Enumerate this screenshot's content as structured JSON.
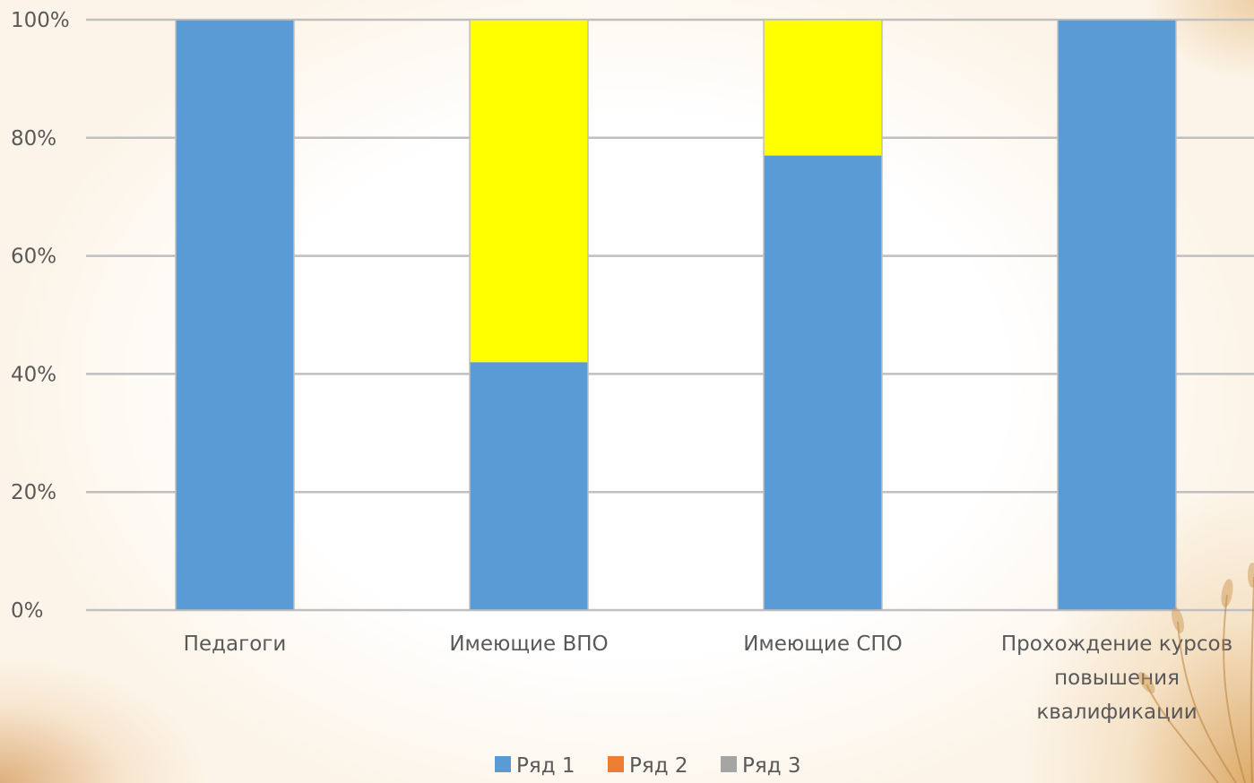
{
  "chart_data": {
    "type": "bar",
    "stacked": "percent",
    "categories": [
      [
        "Педагоги"
      ],
      [
        "Имеющие ВПО"
      ],
      [
        "Имеющие СПО"
      ],
      [
        "Прохождение курсов",
        "повышения",
        "квалификации"
      ]
    ],
    "series": [
      {
        "name": "Ряд 1",
        "color": "#5B9BD5",
        "values": [
          100,
          42,
          77,
          100
        ]
      },
      {
        "name": "Ряд 2",
        "color": "#ED7D31",
        "values": [
          0,
          0,
          0,
          0
        ]
      },
      {
        "name": "Ряд 3",
        "color": "#A5A5A5",
        "values": [
          0,
          0,
          0,
          0
        ]
      }
    ],
    "highlight": {
      "color": "#FFFF00",
      "values": [
        0,
        58,
        23,
        0
      ]
    },
    "y_ticks": [
      "0%",
      "20%",
      "40%",
      "60%",
      "80%",
      "100%"
    ],
    "ylim": [
      0,
      100
    ],
    "grid": true,
    "legend_position": "bottom"
  }
}
